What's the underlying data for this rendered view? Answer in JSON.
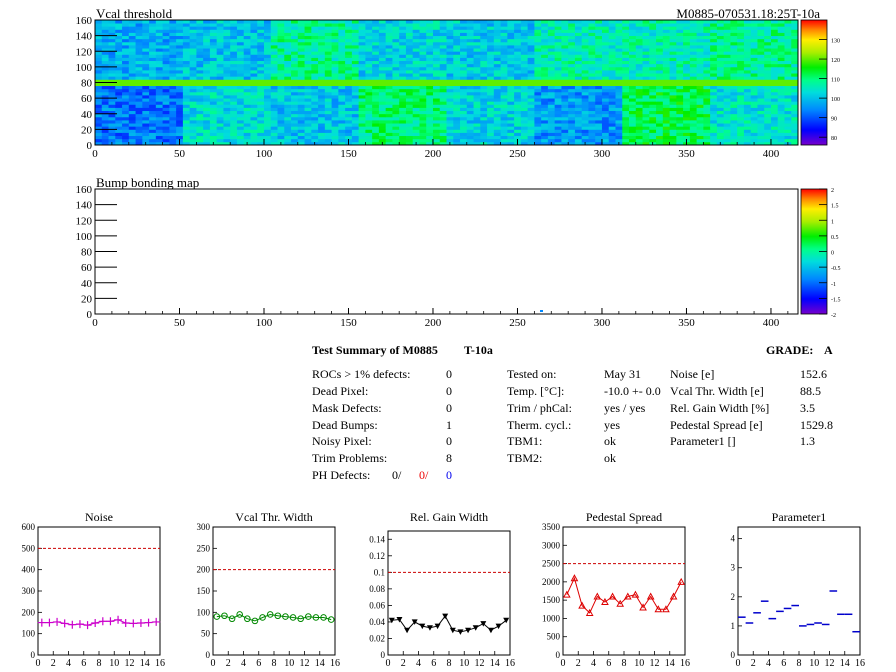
{
  "module_label": "M0885-070531.18:25T-10a",
  "maps": [
    {
      "title": "Vcal threshold",
      "x_ticks": [
        "0",
        "50",
        "100",
        "150",
        "200",
        "250",
        "300",
        "350",
        "400"
      ],
      "y_ticks": [
        "0",
        "20",
        "40",
        "60",
        "80",
        "100",
        "120",
        "140",
        "160"
      ],
      "x_range": [
        0,
        416
      ],
      "y_range": [
        0,
        160
      ],
      "palette_ticks": [
        "80",
        "90",
        "100",
        "110",
        "120",
        "130"
      ],
      "palette_range": [
        76,
        140
      ]
    },
    {
      "title": "Bump bonding map",
      "x_ticks": [
        "0",
        "50",
        "100",
        "150",
        "200",
        "250",
        "300",
        "350",
        "400"
      ],
      "y_ticks": [
        "0",
        "20",
        "40",
        "60",
        "80",
        "100",
        "120",
        "140",
        "160"
      ],
      "x_range": [
        0,
        416
      ],
      "y_range": [
        0,
        160
      ],
      "palette_ticks": [
        "-2",
        "-1.5",
        "-1",
        "-0.5",
        "0",
        "0.5",
        "1",
        "1.5",
        "2"
      ],
      "palette_range": [
        -2,
        2
      ]
    }
  ],
  "summary": {
    "title": "Test Summary of M0885",
    "temp_code": "T-10a",
    "grade_label": "GRADE:",
    "grade": "A",
    "left": [
      {
        "label": "ROCs > 1% defects:",
        "value": "0"
      },
      {
        "label": "Dead Pixel:",
        "value": "0"
      },
      {
        "label": "Mask Defects:",
        "value": "0"
      },
      {
        "label": "Dead Bumps:",
        "value": "1"
      },
      {
        "label": "Noisy Pixel:",
        "value": "0"
      },
      {
        "label": "Trim Problems:",
        "value": "8"
      }
    ],
    "ph_defects": {
      "label": "PH Defects:",
      "v1": "0/",
      "v2": "0/",
      "v3": "0"
    },
    "middle": [
      {
        "label": "Tested on:",
        "value": "May 31"
      },
      {
        "label": "Temp. [°C]:",
        "value": "-10.0 +- 0.0"
      },
      {
        "label": "Trim / phCal:",
        "value": "yes / yes"
      },
      {
        "label": "Therm. cycl.:",
        "value": "yes"
      },
      {
        "label": "TBM1:",
        "value": "ok"
      },
      {
        "label": "TBM2:",
        "value": "ok"
      }
    ],
    "right": [
      {
        "label": "Noise [e]",
        "value": "152.6"
      },
      {
        "label": "Vcal Thr. Width [e]",
        "value": "88.5"
      },
      {
        "label": "Rel. Gain Width [%]",
        "value": "3.5"
      },
      {
        "label": "Pedestal Spread [e]",
        "value": "1529.8"
      },
      {
        "label": "Parameter1 []",
        "value": "1.3"
      }
    ]
  },
  "chart_data": [
    {
      "type": "line",
      "title": "Noise",
      "color": "#cc00cc",
      "marker": "cross",
      "x": [
        0,
        1,
        2,
        3,
        4,
        5,
        6,
        7,
        8,
        9,
        10,
        11,
        12,
        13,
        14,
        15
      ],
      "values": [
        152,
        152,
        155,
        148,
        142,
        145,
        140,
        150,
        158,
        158,
        165,
        150,
        148,
        150,
        152,
        155
      ],
      "xlim": [
        0,
        16
      ],
      "ylim": [
        0,
        600
      ],
      "threshold": 500,
      "x_ticks": [
        "0",
        "2",
        "4",
        "6",
        "8",
        "10",
        "12",
        "14",
        "16"
      ],
      "y_ticks": [
        "0",
        "100",
        "200",
        "300",
        "400",
        "500",
        "600"
      ]
    },
    {
      "type": "line",
      "title": "Vcal Thr. Width",
      "color": "#008800",
      "marker": "circle",
      "x": [
        0,
        1,
        2,
        3,
        4,
        5,
        6,
        7,
        8,
        9,
        10,
        11,
        12,
        13,
        14,
        15
      ],
      "values": [
        90,
        92,
        85,
        95,
        85,
        80,
        88,
        95,
        92,
        90,
        88,
        85,
        90,
        88,
        88,
        83
      ],
      "xlim": [
        0,
        16
      ],
      "ylim": [
        0,
        300
      ],
      "threshold": 200,
      "x_ticks": [
        "0",
        "2",
        "4",
        "6",
        "8",
        "10",
        "12",
        "14",
        "16"
      ],
      "y_ticks": [
        "0",
        "50",
        "100",
        "150",
        "200",
        "250",
        "300"
      ]
    },
    {
      "type": "line",
      "title": "Rel. Gain Width",
      "color": "#000000",
      "marker": "triangle-down",
      "x": [
        0,
        1,
        2,
        3,
        4,
        5,
        6,
        7,
        8,
        9,
        10,
        11,
        12,
        13,
        14,
        15
      ],
      "values": [
        0.042,
        0.043,
        0.03,
        0.04,
        0.035,
        0.033,
        0.035,
        0.047,
        0.03,
        0.028,
        0.03,
        0.033,
        0.038,
        0.03,
        0.035,
        0.042
      ],
      "xlim": [
        0,
        16
      ],
      "ylim": [
        0,
        0.15
      ],
      "threshold": 0.1,
      "x_ticks": [
        "0",
        "2",
        "4",
        "6",
        "8",
        "10",
        "12",
        "14",
        "16"
      ],
      "y_ticks": [
        "0",
        "0.02",
        "0.04",
        "0.06",
        "0.08",
        "0.1",
        "0.12",
        "0.14"
      ]
    },
    {
      "type": "line",
      "title": "Pedestal Spread",
      "color": "#dd0000",
      "marker": "triangle-up",
      "x": [
        0,
        1,
        2,
        3,
        4,
        5,
        6,
        7,
        8,
        9,
        10,
        11,
        12,
        13,
        14,
        15
      ],
      "values": [
        1650,
        2100,
        1350,
        1150,
        1600,
        1450,
        1600,
        1400,
        1600,
        1650,
        1300,
        1600,
        1250,
        1250,
        1600,
        2000
      ],
      "xlim": [
        0,
        16
      ],
      "ylim": [
        0,
        3500
      ],
      "threshold": 2500,
      "x_ticks": [
        "0",
        "2",
        "4",
        "6",
        "8",
        "10",
        "12",
        "14",
        "16"
      ],
      "y_ticks": [
        "0",
        "500",
        "1000",
        "1500",
        "2000",
        "2500",
        "3000",
        "3500"
      ]
    },
    {
      "type": "scatter",
      "title": "Parameter1",
      "color": "#0000cc",
      "marker": "hline",
      "x": [
        0,
        1,
        2,
        3,
        4,
        5,
        6,
        7,
        8,
        9,
        10,
        11,
        12,
        13,
        14,
        15
      ],
      "values": [
        1.3,
        1.1,
        1.45,
        1.85,
        1.25,
        1.5,
        1.6,
        1.7,
        1.0,
        1.05,
        1.1,
        1.05,
        2.2,
        1.4,
        1.4,
        0.8
      ],
      "xlim": [
        0,
        16
      ],
      "ylim": [
        0,
        4.4
      ],
      "threshold": null,
      "x_ticks": [
        "0",
        "2",
        "4",
        "6",
        "8",
        "10",
        "12",
        "14",
        "16"
      ],
      "y_ticks": [
        "0",
        "1",
        "2",
        "3",
        "4"
      ]
    }
  ]
}
